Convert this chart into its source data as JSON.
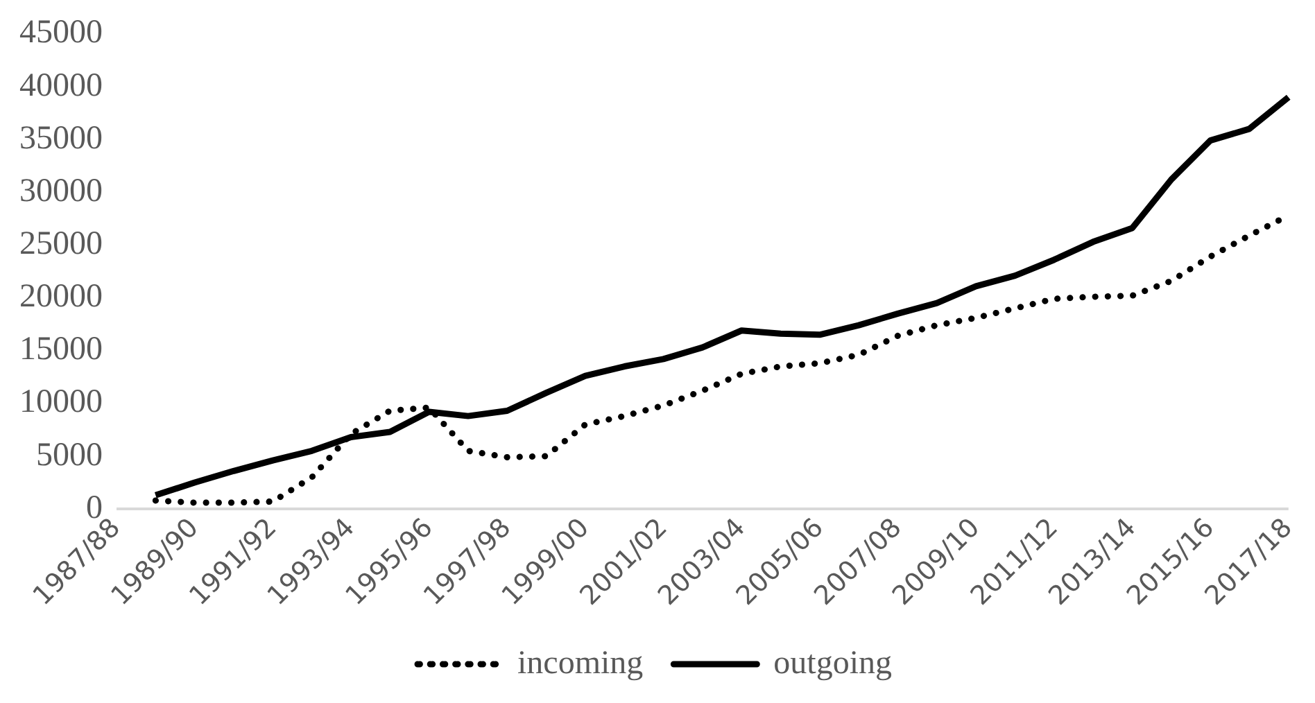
{
  "chart_data": {
    "type": "line",
    "categories": [
      "1987/88",
      null,
      "1989/90",
      null,
      "1991/92",
      null,
      "1993/94",
      null,
      "1995/96",
      null,
      "1997/98",
      null,
      "1999/00",
      null,
      "2001/02",
      null,
      "2003/04",
      null,
      "2005/06",
      null,
      "2007/08",
      null,
      "2009/10",
      null,
      "2011/12",
      null,
      "2013/14",
      null,
      "2015/16",
      null,
      "2017/18"
    ],
    "series": [
      {
        "name": "incoming",
        "color": "#000000",
        "line_style": "dotted",
        "values": [
          null,
          800,
          600,
          600,
          700,
          3000,
          7100,
          9300,
          9600,
          5500,
          4900,
          5000,
          8000,
          8800,
          9800,
          11200,
          12800,
          13500,
          13800,
          14600,
          16400,
          17400,
          18100,
          19000,
          19900,
          20100,
          20200,
          21600,
          23900,
          25900,
          27800
        ]
      },
      {
        "name": "outgoing",
        "color": "#000000",
        "line_style": "solid",
        "values": [
          null,
          1300,
          2500,
          3600,
          4600,
          5500,
          6800,
          7300,
          9200,
          8800,
          9300,
          11000,
          12600,
          13500,
          14200,
          15300,
          16900,
          16600,
          16500,
          17400,
          18500,
          19500,
          21100,
          22100,
          23600,
          25300,
          26600,
          31200,
          34900,
          36000,
          39000
        ]
      }
    ],
    "ylim": [
      0,
      45000
    ],
    "yticks": [
      0,
      5000,
      10000,
      15000,
      20000,
      25000,
      30000,
      35000,
      40000,
      45000
    ],
    "grid": false,
    "legend": "bottom",
    "marker": "none"
  }
}
